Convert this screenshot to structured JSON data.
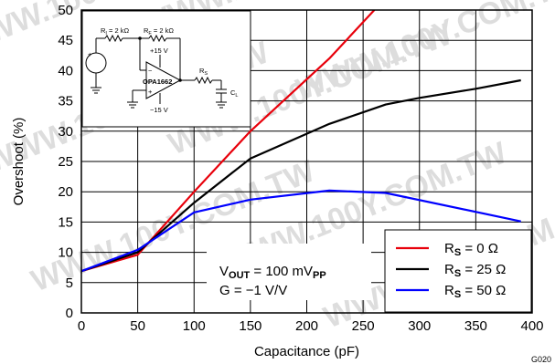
{
  "chart_data": {
    "type": "line",
    "title": "",
    "xlabel": "Capacitance (pF)",
    "ylabel": "Overshoot (%)",
    "xlim": [
      0,
      400
    ],
    "ylim": [
      0,
      50
    ],
    "xticks": [
      0,
      50,
      100,
      150,
      200,
      250,
      300,
      350,
      400
    ],
    "yticks": [
      0,
      5,
      10,
      15,
      20,
      25,
      30,
      35,
      40,
      45,
      50
    ],
    "grid": true,
    "legend_position": "bottom-right",
    "series": [
      {
        "name": "Rs = 0 Ω",
        "label_main": "R",
        "label_sub": "S",
        "label_value": " = 0 Ω",
        "color": "#e8000b",
        "x": [
          0,
          50,
          100,
          150,
          220,
          260
        ],
        "y": [
          6.9,
          9.6,
          20.0,
          30.0,
          42.0,
          50.0
        ]
      },
      {
        "name": "Rs = 25 Ω",
        "label_main": "R",
        "label_sub": "S",
        "label_value": " = 25 Ω",
        "color": "#000000",
        "x": [
          0,
          50,
          100,
          150,
          220,
          270,
          300,
          350,
          390
        ],
        "y": [
          6.9,
          10.0,
          18.2,
          25.5,
          31.2,
          34.4,
          35.5,
          37.0,
          38.4
        ]
      },
      {
        "name": "Rs = 50 Ω",
        "label_main": "R",
        "label_sub": "S",
        "label_value": " = 50 Ω",
        "color": "#0000ff",
        "x": [
          0,
          50,
          100,
          150,
          220,
          270,
          390
        ],
        "y": [
          6.9,
          10.4,
          16.6,
          18.7,
          20.2,
          19.8,
          15.1
        ]
      }
    ],
    "annotation": {
      "line1_main": "V",
      "line1_sub": "OUT",
      "line1_value": " = 100 mV",
      "line1_unit_sub": "PP",
      "line2": "G = −1 V/V"
    },
    "figure_code": "G020"
  },
  "circuit": {
    "ri_label": "R",
    "ri_sub": "I",
    "ri_value": " = 2 kΩ",
    "rf_label": "R",
    "rf_sub": "F",
    "rf_value": " = 2 kΩ",
    "vpos": "+15 V",
    "vneg": "−15 V",
    "opamp": "OPA1662",
    "rs_label": "R",
    "rs_sub": "S",
    "cl_label": "C",
    "cl_sub": "L",
    "minus": "−",
    "plus": "+"
  },
  "watermark": "WWW.100Y.COM.TW"
}
